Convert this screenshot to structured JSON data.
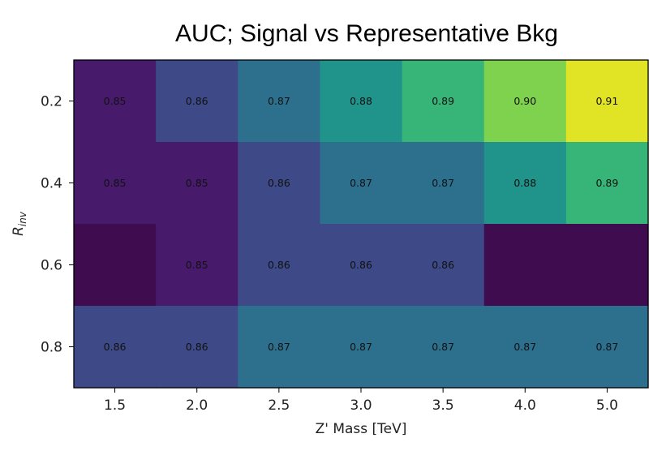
{
  "chart_data": {
    "type": "heatmap",
    "title": "AUC; Signal vs Representative Bkg",
    "xlabel": "Z' Mass [TeV]",
    "ylabel_main": "R",
    "ylabel_sub": "inv",
    "x_categories": [
      "1.5",
      "2.0",
      "2.5",
      "3.0",
      "3.5",
      "4.0",
      "5.0"
    ],
    "y_categories": [
      "0.2",
      "0.4",
      "0.6",
      "0.8"
    ],
    "values": [
      [
        0.85,
        0.86,
        0.87,
        0.88,
        0.89,
        0.9,
        0.91
      ],
      [
        0.85,
        0.85,
        0.86,
        0.87,
        0.87,
        0.88,
        0.89
      ],
      [
        null,
        0.85,
        0.86,
        0.86,
        0.86,
        null,
        null
      ],
      [
        0.86,
        0.86,
        0.87,
        0.87,
        0.87,
        0.87,
        0.87
      ]
    ],
    "cell_labels": [
      [
        "0.85",
        "0.86",
        "0.87",
        "0.88",
        "0.89",
        "0.90",
        "0.91"
      ],
      [
        "0.85",
        "0.85",
        "0.86",
        "0.87",
        "0.87",
        "0.88",
        "0.89"
      ],
      [
        "",
        "0.85",
        "0.86",
        "0.86",
        "0.86",
        "",
        ""
      ],
      [
        "0.86",
        "0.86",
        "0.87",
        "0.87",
        "0.87",
        "0.87",
        "0.87"
      ]
    ],
    "colormap": "viridis",
    "color_range": [
      0.845,
      0.913
    ],
    "missing_color": "#3f0d4f",
    "grid": false,
    "legend": "none"
  }
}
